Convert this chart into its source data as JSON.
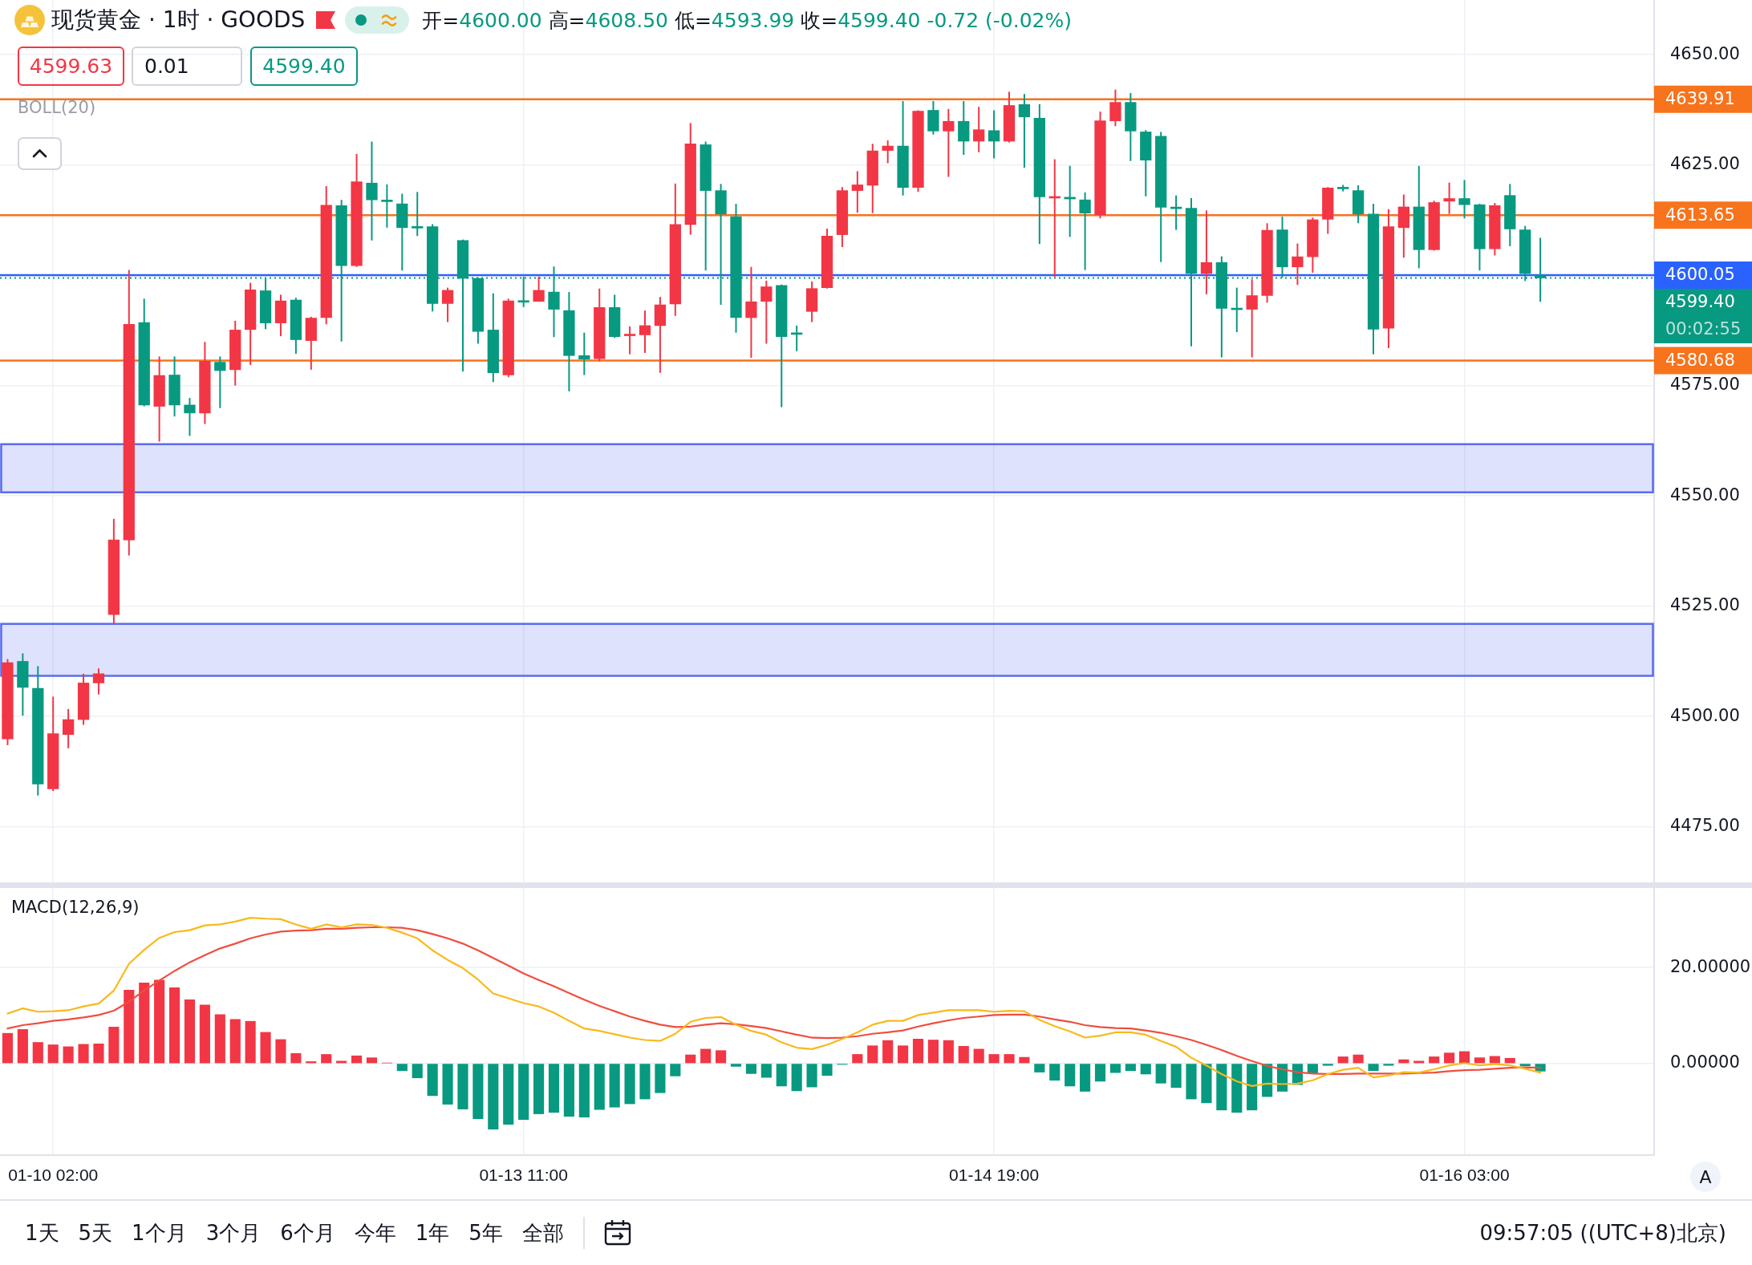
{
  "chart_data": [
    {
      "type": "candlestick",
      "title": "现货黄金 · 1时 · GOODS",
      "subtitle": "开=4600.00 高=4608.50 低=4593.99 收=4599.40 -0.72 (-0.02%)",
      "categories": [
        null,
        null,
        null,
        null,
        null,
        null,
        null,
        null,
        null,
        null,
        null,
        null,
        null,
        null,
        null,
        null,
        null,
        null,
        null,
        null,
        null,
        null,
        null,
        null,
        null,
        null,
        null,
        null,
        null,
        null,
        null,
        null,
        null,
        null,
        null,
        null,
        null,
        null,
        null,
        null,
        null,
        null,
        null,
        null,
        null,
        null,
        null,
        null,
        null,
        null,
        null,
        null,
        null,
        null,
        null,
        null,
        null,
        null,
        null,
        null,
        null,
        null,
        null,
        null,
        null,
        null,
        null,
        null,
        null,
        null,
        null,
        null,
        null,
        null,
        null,
        null,
        null,
        null,
        null,
        null,
        null,
        null,
        null,
        null,
        null,
        null,
        null,
        null,
        null,
        null,
        null,
        null,
        null,
        null,
        null,
        null,
        null,
        null,
        null,
        null,
        null,
        null,
        null,
        null,
        null,
        null,
        null,
        null,
        null
      ],
      "ohlc": [
        [
          4494.9,
          4513.0,
          4493.5,
          4512.2
        ],
        [
          4512.5,
          4514.3,
          4500.2,
          4506.6
        ],
        [
          4506.4,
          4511.4,
          4482.1,
          4484.7
        ],
        [
          4483.6,
          4504.5,
          4483.1,
          4496.1
        ],
        [
          4495.9,
          4501.7,
          4492.8,
          4499.3
        ],
        [
          4499.3,
          4509.7,
          4498.1,
          4507.6
        ],
        [
          4507.6,
          4510.9,
          4505.0,
          4509.7
        ],
        [
          4523.1,
          4544.8,
          4521.0,
          4540.0
        ],
        [
          4540.0,
          4601.2,
          4536.5,
          4588.9
        ],
        [
          4589.3,
          4594.7,
          4570.3,
          4570.6
        ],
        [
          4570.3,
          4581.6,
          4562.3,
          4577.3
        ],
        [
          4577.4,
          4581.6,
          4568.0,
          4570.6
        ],
        [
          4570.6,
          4572.2,
          4563.6,
          4568.8
        ],
        [
          4568.8,
          4584.9,
          4566.3,
          4580.5
        ],
        [
          4580.3,
          4581.6,
          4569.9,
          4578.4
        ],
        [
          4578.6,
          4589.7,
          4575.0,
          4587.6
        ],
        [
          4587.7,
          4598.3,
          4579.7,
          4596.7
        ],
        [
          4596.5,
          4599.3,
          4587.8,
          4589.2
        ],
        [
          4589.2,
          4595.6,
          4586.2,
          4594.2
        ],
        [
          4594.4,
          4594.9,
          4582.2,
          4585.4
        ],
        [
          4585.2,
          4590.6,
          4578.6,
          4590.3
        ],
        [
          4590.4,
          4620.2,
          4588.9,
          4615.9
        ],
        [
          4615.8,
          4617.1,
          4585.0,
          4602.2
        ],
        [
          4602.2,
          4627.5,
          4601.9,
          4621.2
        ],
        [
          4620.9,
          4630.3,
          4607.9,
          4617.1
        ],
        [
          4616.9,
          4620.6,
          4610.8,
          4616.7
        ],
        [
          4616.2,
          4618.5,
          4601.1,
          4610.8
        ],
        [
          4610.9,
          4618.9,
          4608.9,
          4610.7
        ],
        [
          4611.0,
          4611.6,
          4591.8,
          4593.6
        ],
        [
          4593.6,
          4597.2,
          4589.4,
          4596.6
        ],
        [
          4607.9,
          4608.1,
          4578.2,
          4599.3
        ],
        [
          4599.3,
          4599.5,
          4584.5,
          4587.3
        ],
        [
          4587.6,
          4595.9,
          4575.8,
          4577.9
        ],
        [
          4577.4,
          4594.7,
          4576.9,
          4594.2
        ],
        [
          4594.1,
          4599.7,
          4592.8,
          4593.9
        ],
        [
          4594.1,
          4599.7,
          4594.0,
          4596.6
        ],
        [
          4596.2,
          4602.0,
          4586.0,
          4592.3
        ],
        [
          4592.0,
          4596.2,
          4573.7,
          4581.8
        ],
        [
          4581.8,
          4587.0,
          4577.4,
          4581.0
        ],
        [
          4581.1,
          4597.0,
          4580.5,
          4592.7
        ],
        [
          4592.7,
          4595.6,
          4585.8,
          4586.1
        ],
        [
          4586.3,
          4588.4,
          4582.1,
          4586.5
        ],
        [
          4586.5,
          4592.0,
          4582.4,
          4588.6
        ],
        [
          4588.6,
          4595.1,
          4577.9,
          4593.3
        ],
        [
          4593.5,
          4620.8,
          4590.8,
          4611.5
        ],
        [
          4611.5,
          4634.5,
          4609.2,
          4629.8
        ],
        [
          4629.6,
          4630.3,
          4601.1,
          4619.2
        ],
        [
          4619.2,
          4620.7,
          4593.3,
          4613.9
        ],
        [
          4613.3,
          4616.2,
          4587.0,
          4590.4
        ],
        [
          4590.4,
          4601.9,
          4581.3,
          4594.0
        ],
        [
          4594.1,
          4598.8,
          4584.5,
          4597.4
        ],
        [
          4597.7,
          4597.9,
          4570.1,
          4586.1
        ],
        [
          4586.8,
          4588.6,
          4582.8,
          4586.6
        ],
        [
          4591.8,
          4598.6,
          4589.4,
          4597.0
        ],
        [
          4597.2,
          4610.6,
          4597.0,
          4608.9
        ],
        [
          4609.2,
          4620.0,
          4606.4,
          4619.2
        ],
        [
          4619.2,
          4623.6,
          4614.2,
          4620.5
        ],
        [
          4620.4,
          4629.8,
          4614.1,
          4628.2
        ],
        [
          4628.3,
          4630.6,
          4625.4,
          4629.3
        ],
        [
          4629.3,
          4639.5,
          4618.1,
          4619.9
        ],
        [
          4619.9,
          4637.4,
          4618.9,
          4637.2
        ],
        [
          4637.4,
          4639.5,
          4631.9,
          4632.7
        ],
        [
          4632.7,
          4637.7,
          4622.3,
          4634.9
        ],
        [
          4634.9,
          4639.5,
          4627.3,
          4630.4
        ],
        [
          4630.4,
          4638.2,
          4627.9,
          4633.0
        ],
        [
          4632.8,
          4637.4,
          4626.5,
          4630.4
        ],
        [
          4630.4,
          4641.6,
          4630.1,
          4638.5
        ],
        [
          4638.7,
          4641.1,
          4624.4,
          4635.9
        ],
        [
          4635.6,
          4638.8,
          4607.1,
          4617.8
        ],
        [
          4617.5,
          4626.3,
          4599.6,
          4617.8
        ],
        [
          4617.7,
          4624.8,
          4608.7,
          4617.3
        ],
        [
          4617.1,
          4618.8,
          4601.2,
          4614.1
        ],
        [
          4613.7,
          4637.1,
          4612.9,
          4635.0
        ],
        [
          4635.0,
          4642.1,
          4633.8,
          4639.2
        ],
        [
          4639.2,
          4641.3,
          4625.9,
          4632.7
        ],
        [
          4632.5,
          4632.9,
          4617.9,
          4626.1
        ],
        [
          4631.5,
          4632.5,
          4603.0,
          4615.4
        ],
        [
          4615.3,
          4618.1,
          4610.3,
          4615.1
        ],
        [
          4615.2,
          4617.5,
          4583.9,
          4600.4
        ],
        [
          4600.4,
          4614.7,
          4595.7,
          4602.9
        ],
        [
          4602.9,
          4604.3,
          4581.4,
          4592.5
        ],
        [
          4592.4,
          4597.2,
          4587.1,
          4592.2
        ],
        [
          4592.3,
          4599.1,
          4581.4,
          4595.4
        ],
        [
          4595.4,
          4611.8,
          4593.8,
          4610.2
        ],
        [
          4610.3,
          4613.3,
          4599.5,
          4601.9
        ],
        [
          4601.9,
          4607.2,
          4597.8,
          4604.2
        ],
        [
          4604.2,
          4613.1,
          4600.6,
          4612.6
        ],
        [
          4612.7,
          4620.0,
          4609.4,
          4619.8
        ],
        [
          4619.8,
          4620.5,
          4619.0,
          4619.6
        ],
        [
          4619.2,
          4620.4,
          4611.8,
          4613.9
        ],
        [
          4613.9,
          4616.2,
          4582.1,
          4587.8
        ],
        [
          4588.0,
          4615.0,
          4583.5,
          4611.0
        ],
        [
          4610.8,
          4618.3,
          4604.0,
          4615.5
        ],
        [
          4615.5,
          4624.8,
          4601.6,
          4605.8
        ],
        [
          4605.8,
          4616.9,
          4605.6,
          4616.5
        ],
        [
          4616.8,
          4621.0,
          4613.9,
          4617.4
        ],
        [
          4617.4,
          4621.6,
          4612.9,
          4616.0
        ],
        [
          4616.0,
          4616.2,
          4601.1,
          4606.0
        ],
        [
          4606.0,
          4616.4,
          4604.5,
          4615.8
        ],
        [
          4618.1,
          4620.7,
          4606.6,
          4610.5
        ],
        [
          4610.3,
          4611.2,
          4598.7,
          4600.4
        ],
        [
          4600.0,
          4608.5,
          4593.99,
          4599.4
        ],
        null,
        null,
        null,
        null,
        null,
        null,
        null
      ],
      "colors": [
        "#f23645",
        "#089981",
        "#089981",
        "#f23645",
        "#f23645",
        "#f23645",
        "#f23645",
        "#f23645",
        "#f23645",
        "#089981",
        "#f23645",
        "#089981",
        "#089981",
        "#f23645",
        "#089981",
        "#f23645",
        "#f23645",
        "#089981",
        "#f23645",
        "#089981",
        "#f23645",
        "#f23645",
        "#089981",
        "#f23645",
        "#089981",
        "#089981",
        "#089981",
        "#089981",
        "#089981",
        "#f23645",
        "#089981",
        "#089981",
        "#089981",
        "#f23645",
        "#089981",
        "#f23645",
        "#089981",
        "#089981",
        "#089981",
        "#f23645",
        "#089981",
        "#f23645",
        "#f23645",
        "#f23645",
        "#f23645",
        "#f23645",
        "#089981",
        "#089981",
        "#089981",
        "#f23645",
        "#f23645",
        "#089981",
        "#089981",
        "#f23645",
        "#f23645",
        "#f23645",
        "#f23645",
        "#f23645",
        "#f23645",
        "#089981",
        "#f23645",
        "#089981",
        "#f23645",
        "#089981",
        "#f23645",
        "#089981",
        "#f23645",
        "#089981",
        "#089981",
        "#f23645",
        "#089981",
        "#089981",
        "#f23645",
        "#f23645",
        "#089981",
        "#089981",
        "#089981",
        "#089981",
        "#089981",
        "#f23645",
        "#089981",
        "#089981",
        "#f23645",
        "#f23645",
        "#089981",
        "#f23645",
        "#f23645",
        "#f23645",
        "#089981",
        "#089981",
        "#089981",
        "#f23645",
        "#f23645",
        "#089981",
        "#f23645",
        "#f23645",
        "#089981",
        "#089981",
        "#f23645",
        "#089981",
        "#089981",
        "#089981",
        null,
        null,
        null,
        null,
        null,
        null,
        null
      ],
      "ylim": [
        4462.4,
        4662.4
      ],
      "yticks": [
        {
          "value": 4475,
          "label": "4475.00"
        },
        {
          "value": 4500,
          "label": "4500.00"
        },
        {
          "value": 4525,
          "label": "4525.00"
        },
        {
          "value": 4550,
          "label": "4550.00"
        },
        {
          "value": 4575,
          "label": "4575.00"
        },
        {
          "value": 4600,
          "label": null
        },
        {
          "value": 4625,
          "label": "4625.00"
        },
        {
          "value": 4650,
          "label": "4650.00"
        }
      ],
      "grid": true,
      "tick_labels": "y",
      "ref_lines": [
        {
          "axis": "y",
          "value": 4639.91,
          "label": "4639.91",
          "color": "#f7731c",
          "line_style": "solid"
        },
        {
          "axis": "y",
          "value": 4613.65,
          "label": "4613.65",
          "color": "#f7731c",
          "line_style": "solid"
        },
        {
          "axis": "y",
          "value": 4600.05,
          "label": "4600.05",
          "color": "#2962ff",
          "line_style": "solid"
        },
        {
          "axis": "y",
          "value": 4599.4,
          "label": "4599.40",
          "color": "#089981",
          "line_style": "dotted"
        },
        {
          "axis": "y",
          "value": 4580.68,
          "label": "4580.68",
          "color": "#f7731c",
          "line_style": "solid"
        }
      ],
      "bands": [
        {
          "axis": "y",
          "from": 4550.8,
          "to": 4561.7,
          "color": "#5b6cf0"
        },
        {
          "axis": "y",
          "from": 4509.2,
          "to": 4521.0,
          "color": "#5b6cf0"
        }
      ],
      "annotations": [
        "4599.63",
        "0.01",
        "4599.40",
        "BOLL(20)",
        "00:02:55"
      ]
    },
    {
      "type": "bar",
      "title": "MACD(12,26,9)",
      "categories": [
        null,
        null,
        null,
        "01-10 02:00",
        null,
        null,
        null,
        null,
        null,
        null,
        null,
        null,
        null,
        null,
        null,
        null,
        null,
        null,
        null,
        null,
        null,
        null,
        null,
        null,
        null,
        null,
        null,
        null,
        null,
        null,
        null,
        null,
        null,
        null,
        "01-13 11:00",
        null,
        null,
        null,
        null,
        null,
        null,
        null,
        null,
        null,
        null,
        null,
        null,
        null,
        null,
        null,
        null,
        null,
        null,
        null,
        null,
        null,
        null,
        null,
        null,
        null,
        null,
        null,
        null,
        null,
        null,
        "01-14 19:00",
        null,
        null,
        null,
        null,
        null,
        null,
        null,
        null,
        null,
        null,
        null,
        null,
        null,
        null,
        null,
        null,
        null,
        null,
        null,
        null,
        null,
        null,
        null,
        null,
        null,
        null,
        null,
        null,
        null,
        null,
        "01-16 03:00",
        null,
        null,
        null,
        null,
        null,
        null,
        null,
        null,
        null,
        null,
        null,
        null
      ],
      "series": [
        {
          "type": "bar",
          "values": [
            6.3,
            7.1,
            4.4,
            3.9,
            3.5,
            4.0,
            4.1,
            7.6,
            15.3,
            16.8,
            17.4,
            15.8,
            13.3,
            12.2,
            10.2,
            9.2,
            8.8,
            6.5,
            5.0,
            2.1,
            0.4,
            1.9,
            0.5,
            1.6,
            1.2,
            0.1,
            -1.5,
            -3.0,
            -6.7,
            -8.5,
            -9.5,
            -11.5,
            -13.7,
            -12.7,
            -11.7,
            -10.5,
            -10.2,
            -11.0,
            -11.2,
            -9.6,
            -9.1,
            -8.4,
            -7.4,
            -6.1,
            -2.6,
            1.8,
            3.0,
            2.7,
            -0.6,
            -2.1,
            -2.9,
            -4.7,
            -5.7,
            -4.9,
            -2.5,
            -0.2,
            1.9,
            3.7,
            4.8,
            3.7,
            5.1,
            4.9,
            4.8,
            3.6,
            3.0,
            1.9,
            1.9,
            1.3,
            -1.8,
            -3.5,
            -4.7,
            -5.8,
            -3.7,
            -1.9,
            -1.5,
            -2.2,
            -4.1,
            -5.0,
            -7.4,
            -8.2,
            -9.7,
            -10.2,
            -9.7,
            -6.9,
            -5.8,
            -4.4,
            -2.0,
            -0.4,
            1.4,
            1.8,
            -1.5,
            -0.4,
            0.8,
            0.5,
            1.4,
            2.2,
            2.5,
            1.2,
            1.5,
            1.1,
            -0.5,
            -1.6,
            null,
            null,
            null,
            null,
            null,
            null,
            null
          ],
          "colors": [
            "#f23645",
            "#f23645",
            "#f23645",
            "#f23645",
            "#f23645",
            "#f23645",
            "#f23645",
            "#f23645",
            "#f23645",
            "#f23645",
            "#f23645",
            "#f23645",
            "#f23645",
            "#f23645",
            "#f23645",
            "#f23645",
            "#f23645",
            "#f23645",
            "#f23645",
            "#f23645",
            "#f23645",
            "#f23645",
            "#f23645",
            "#f23645",
            "#f23645",
            "#f23645",
            "#089981",
            "#089981",
            "#089981",
            "#089981",
            "#089981",
            "#089981",
            "#089981",
            "#089981",
            "#089981",
            "#089981",
            "#089981",
            "#089981",
            "#089981",
            "#089981",
            "#089981",
            "#089981",
            "#089981",
            "#089981",
            "#089981",
            "#f23645",
            "#f23645",
            "#f23645",
            "#089981",
            "#089981",
            "#089981",
            "#089981",
            "#089981",
            "#089981",
            "#089981",
            "#089981",
            "#f23645",
            "#f23645",
            "#f23645",
            "#f23645",
            "#f23645",
            "#f23645",
            "#f23645",
            "#f23645",
            "#f23645",
            "#f23645",
            "#f23645",
            "#f23645",
            "#089981",
            "#089981",
            "#089981",
            "#089981",
            "#089981",
            "#089981",
            "#089981",
            "#089981",
            "#089981",
            "#089981",
            "#089981",
            "#089981",
            "#089981",
            "#089981",
            "#089981",
            "#089981",
            "#089981",
            "#089981",
            "#089981",
            "#089981",
            "#f23645",
            "#f23645",
            "#089981",
            "#089981",
            "#f23645",
            "#f23645",
            "#f23645",
            "#f23645",
            "#f23645",
            "#f23645",
            "#f23645",
            "#f23645",
            "#089981",
            "#089981",
            null,
            null,
            null,
            null,
            null,
            null,
            null
          ]
        },
        {
          "type": "line",
          "color": "#f9b91a",
          "values": [
            10.4,
            11.5,
            10.8,
            10.9,
            11.1,
            11.9,
            12.5,
            15.2,
            20.8,
            23.7,
            26.2,
            27.4,
            27.8,
            28.8,
            29.0,
            29.6,
            30.4,
            30.2,
            30.1,
            29.0,
            28.1,
            29.0,
            28.4,
            29.0,
            28.9,
            28.3,
            27.3,
            26.1,
            23.6,
            21.6,
            19.9,
            17.5,
            14.6,
            13.6,
            12.6,
            11.9,
            10.6,
            8.9,
            7.3,
            6.8,
            6.1,
            5.4,
            4.9,
            4.7,
            6.2,
            8.7,
            9.5,
            9.7,
            8.1,
            6.8,
            6.0,
            4.4,
            3.3,
            3.0,
            3.9,
            5.1,
            6.5,
            8.1,
            8.9,
            8.9,
            10.1,
            10.6,
            11.1,
            11.1,
            11.1,
            10.8,
            11.0,
            10.9,
            9.1,
            7.8,
            6.7,
            5.4,
            5.8,
            6.5,
            6.5,
            6.0,
            4.7,
            3.5,
            1.2,
            -0.4,
            -2.2,
            -3.7,
            -4.7,
            -4.2,
            -4.3,
            -4.2,
            -3.5,
            -2.2,
            -1.3,
            -0.9,
            -2.9,
            -2.5,
            -1.8,
            -1.9,
            -1.2,
            -0.4,
            0.1,
            -0.4,
            -0.1,
            -0.4,
            -1.1,
            -1.9,
            null,
            null,
            null,
            null,
            null,
            null,
            null
          ]
        },
        {
          "type": "line",
          "color": "#f04e3e",
          "values": [
            7.3,
            8.0,
            8.4,
            8.9,
            9.2,
            9.6,
            10.1,
            11.0,
            12.9,
            15.2,
            17.3,
            19.3,
            21.1,
            22.6,
            24.0,
            25.0,
            26.1,
            26.9,
            27.5,
            27.7,
            27.8,
            28.1,
            28.1,
            28.3,
            28.4,
            28.4,
            28.3,
            27.8,
            27.0,
            26.1,
            25.0,
            23.6,
            22.0,
            20.4,
            18.8,
            17.4,
            16.1,
            14.7,
            13.3,
            12.0,
            10.9,
            9.8,
            8.9,
            8.1,
            7.6,
            7.7,
            8.1,
            8.4,
            8.2,
            7.8,
            7.4,
            6.7,
            6.0,
            5.4,
            5.3,
            5.4,
            5.7,
            6.2,
            6.5,
            6.9,
            7.7,
            8.4,
            9.0,
            9.5,
            9.8,
            10.1,
            10.2,
            10.2,
            9.8,
            9.2,
            8.7,
            8.0,
            7.6,
            7.4,
            7.3,
            6.9,
            6.4,
            5.7,
            4.9,
            3.9,
            2.8,
            1.6,
            0.5,
            -0.5,
            -1.2,
            -1.8,
            -2.1,
            -2.2,
            -2.2,
            -2.1,
            -2.1,
            -2.1,
            -2.1,
            -2.0,
            -1.9,
            -1.6,
            -1.4,
            -1.3,
            -1.1,
            -0.9,
            -0.8,
            -0.9,
            null,
            null,
            null,
            null,
            null,
            null,
            null
          ]
        }
      ],
      "ylim": [
        -19.1,
        36.6
      ],
      "yticks": [
        {
          "value": 0,
          "label": "0.00000"
        },
        {
          "value": 20,
          "label": "20.00000"
        }
      ],
      "grid": true,
      "annotations": [
        "A"
      ]
    },
    {
      "type": "other",
      "annotations": [
        "1天",
        "5天",
        "1个月",
        "3个月",
        "6个月",
        "今年",
        "1年",
        "5年",
        "全部",
        "09:57:05 ((UTC+8)北京)"
      ]
    }
  ]
}
